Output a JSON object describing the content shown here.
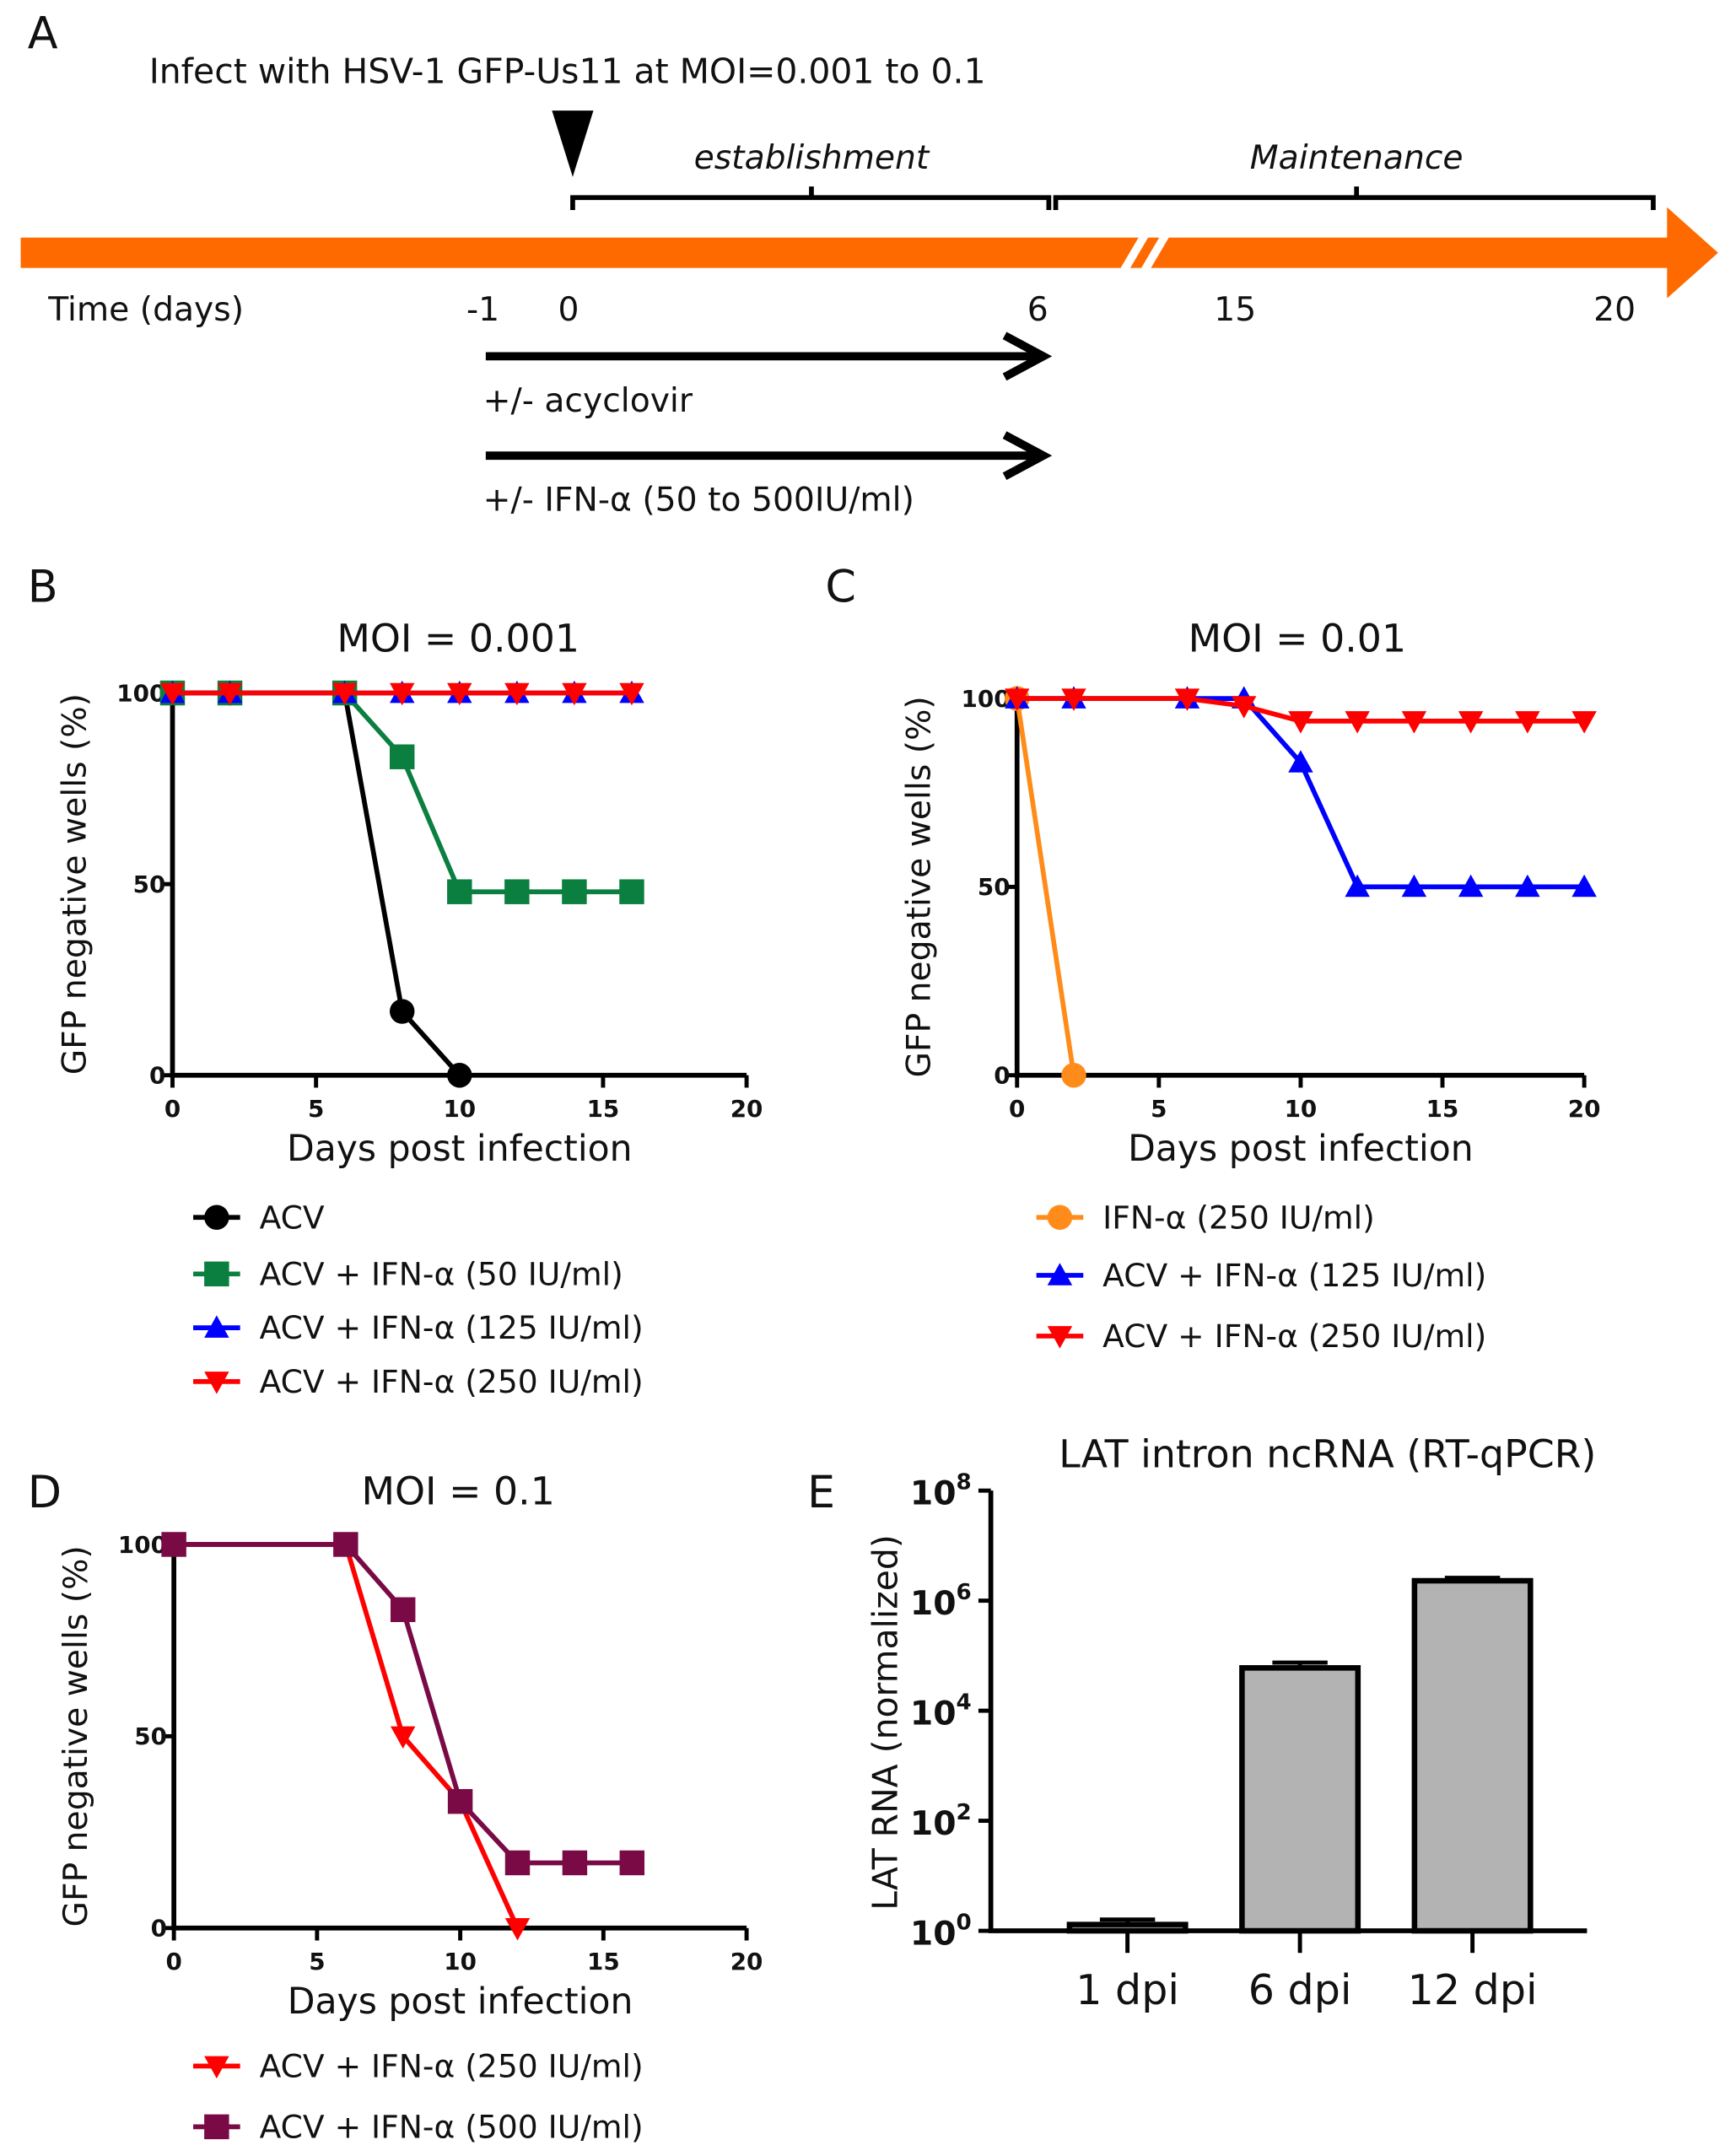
{
  "panel_labels": {
    "a": "A",
    "b": "B",
    "c": "C",
    "d": "D",
    "e": "E"
  },
  "timeline": {
    "title": "Infect with HSV-1 GFP-Us11 at MOI=0.001 to 0.1",
    "phase1": "establishment",
    "phase2": "Maintenance",
    "time_label": "Time (days)",
    "ticks": [
      "-1",
      "0",
      "6",
      "15",
      "20"
    ],
    "treatment1": "+/- acyclovir",
    "treatment2": "+/- IFN-α (50 to 500IU/ml)",
    "arrow_color": "#ff6a00"
  },
  "chart_data": [
    {
      "type": "line",
      "title": "MOI = 0.001",
      "xlabel": "Days post infection",
      "ylabel": "GFP negative wells (%)",
      "xlim": [
        0,
        20
      ],
      "ylim": [
        0,
        100
      ],
      "xticks": [
        "0",
        "5",
        "10",
        "15",
        "20"
      ],
      "yticks": [
        "0",
        "50",
        "100"
      ],
      "legend_placement": "bottom",
      "series": [
        {
          "name": "ACV",
          "color": "#000000",
          "marker": "circle",
          "x": [
            0,
            2,
            6,
            8,
            10
          ],
          "y": [
            100,
            100,
            100,
            16.7,
            0
          ]
        },
        {
          "name": "ACV + IFN-α (50 IU/ml)",
          "color": "#0a7f3f",
          "marker": "square",
          "x": [
            0,
            2,
            6,
            8,
            10,
            12,
            14,
            16
          ],
          "y": [
            100,
            100,
            100,
            83.3,
            48,
            48,
            48,
            48
          ]
        },
        {
          "name": "ACV + IFN-α (125 IU/ml)",
          "color": "#0000ff",
          "marker": "triangle-up",
          "x": [
            0,
            2,
            6,
            8,
            10,
            12,
            14,
            16
          ],
          "y": [
            100,
            100,
            100,
            100,
            100,
            100,
            100,
            100
          ]
        },
        {
          "name": "ACV + IFN-α (250 IU/ml)",
          "color": "#ff0000",
          "marker": "triangle-down",
          "x": [
            0,
            2,
            6,
            8,
            10,
            12,
            14,
            16
          ],
          "y": [
            100,
            100,
            100,
            100,
            100,
            100,
            100,
            100
          ]
        }
      ]
    },
    {
      "type": "line",
      "title": "MOI = 0.01",
      "xlabel": "Days post infection",
      "ylabel": "GFP negative wells (%)",
      "xlim": [
        0,
        20
      ],
      "ylim": [
        0,
        100
      ],
      "xticks": [
        "0",
        "5",
        "10",
        "15",
        "20"
      ],
      "yticks": [
        "0",
        "50",
        "100"
      ],
      "legend_placement": "bottom",
      "series": [
        {
          "name": "IFN-α (250 IU/ml)",
          "color": "#ff8c1a",
          "marker": "circle",
          "x": [
            0,
            2
          ],
          "y": [
            100,
            0
          ]
        },
        {
          "name": "ACV + IFN-α (125 IU/ml)",
          "color": "#0000ff",
          "marker": "triangle-up",
          "x": [
            0,
            2,
            6,
            8,
            10,
            12,
            14,
            16,
            18,
            20
          ],
          "y": [
            100,
            100,
            100,
            100,
            83,
            50,
            50,
            50,
            50,
            50
          ]
        },
        {
          "name": "ACV + IFN-α (250 IU/ml)",
          "color": "#ff0000",
          "marker": "triangle-down",
          "x": [
            0,
            2,
            6,
            8,
            10,
            12,
            14,
            16,
            18,
            20
          ],
          "y": [
            100,
            100,
            100,
            98,
            94,
            94,
            94,
            94,
            94,
            94
          ]
        }
      ]
    },
    {
      "type": "line",
      "title": "MOI = 0.1",
      "xlabel": "Days post infection",
      "ylabel": "GFP negative wells (%)",
      "xlim": [
        0,
        20
      ],
      "ylim": [
        0,
        100
      ],
      "xticks": [
        "0",
        "5",
        "10",
        "15",
        "20"
      ],
      "yticks": [
        "0",
        "50",
        "100"
      ],
      "legend_placement": "bottom",
      "series": [
        {
          "name": "ACV + IFN-α (250 IU/ml)",
          "color": "#ff0000",
          "marker": "triangle-down",
          "x": [
            0,
            6,
            8,
            10,
            12
          ],
          "y": [
            100,
            100,
            50,
            33,
            0
          ]
        },
        {
          "name": "ACV + IFN-α (500 IU/ml)",
          "color": "#7a0a45",
          "marker": "square",
          "x": [
            0,
            6,
            8,
            10,
            12,
            14,
            16
          ],
          "y": [
            100,
            100,
            83,
            33,
            17,
            17,
            17
          ]
        }
      ]
    },
    {
      "type": "bar",
      "title": "LAT intron ncRNA (RT-qPCR)",
      "xlabel": "",
      "ylabel": "LAT RNA (normalized)",
      "yscale": "log",
      "ylim": [
        1,
        100000000
      ],
      "yticks": [
        "10^0",
        "10^2",
        "10^4",
        "10^6",
        "10^8"
      ],
      "categories": [
        "1 dpi",
        "6 dpi",
        "12 dpi"
      ],
      "values": [
        1.3,
        60000,
        2300000
      ],
      "error_upper": [
        1.6,
        75000,
        2600000
      ],
      "bar_color": "#b3b3b3"
    }
  ]
}
